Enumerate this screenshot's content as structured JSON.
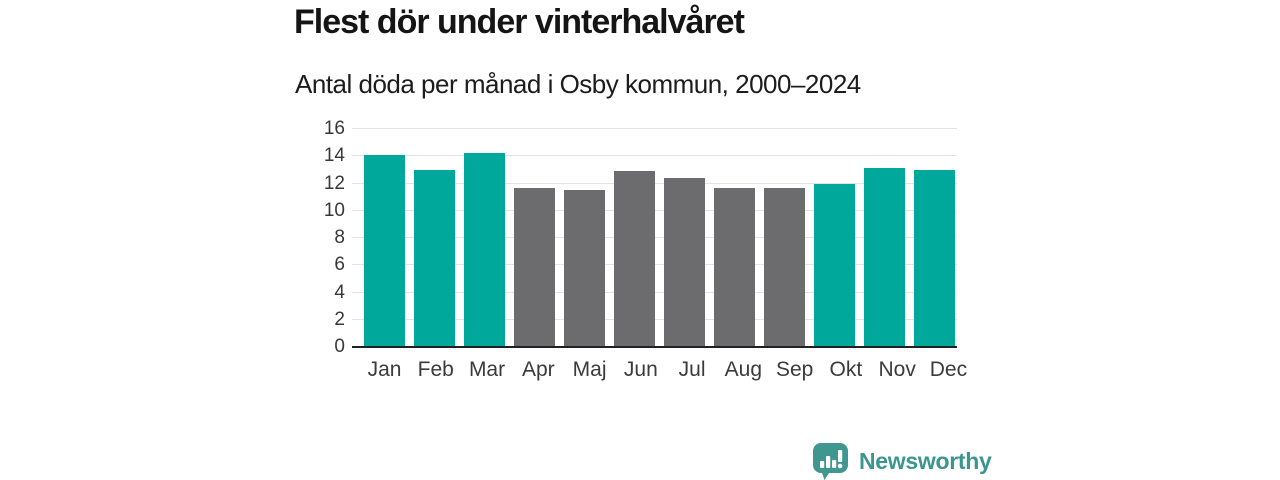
{
  "chart_data": {
    "type": "bar",
    "title": "Flest dör under vinterhalvåret",
    "subtitle": "Antal döda per månad i Osby kommun, 2000–2024",
    "categories": [
      "Jan",
      "Feb",
      "Mar",
      "Apr",
      "Maj",
      "Jun",
      "Jul",
      "Aug",
      "Sep",
      "Okt",
      "Nov",
      "Dec"
    ],
    "values": [
      14.1,
      13.0,
      14.25,
      11.7,
      11.5,
      12.9,
      12.4,
      11.7,
      11.65,
      12.0,
      13.15,
      13.0
    ],
    "highlighted": [
      true,
      true,
      true,
      false,
      false,
      false,
      false,
      false,
      false,
      true,
      true,
      true
    ],
    "y_ticks": [
      0,
      2,
      4,
      6,
      8,
      10,
      12,
      14,
      16
    ],
    "ylim": [
      0,
      16
    ],
    "xlabel": "",
    "ylabel": "",
    "legend_position": "none",
    "grid": "horizontal",
    "colors": {
      "highlight_bar": "#00a79b",
      "default_bar": "#6c6c6e",
      "gridline": "#e3e3e3",
      "axis_line": "#212121",
      "tick_label": "#383838"
    }
  },
  "footer": {
    "brand": "Newsworthy",
    "brand_color": "#3a968e",
    "logo_color": "#3f978f"
  }
}
